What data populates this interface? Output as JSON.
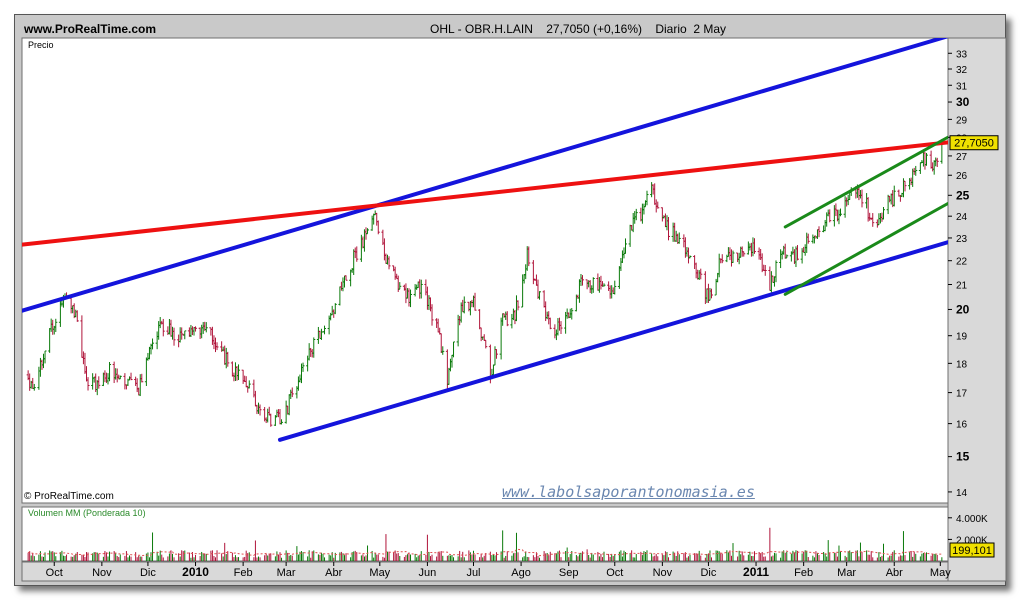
{
  "header": {
    "site": "www.ProRealTime.com",
    "ticker_line": "OHL - OBR.H.LAIN    27,7050 (+0,16%)    Diario  2 May"
  },
  "watermark": "www.labolsaporantonomasia.es",
  "credit": "© ProRealTime.com",
  "price_panel_label": "Precio",
  "volume_panel_label": "Volumen MM (Ponderada 10)",
  "last_price_label": "27,7050",
  "last_volume_label": "199,101",
  "colors": {
    "up_bar": "#0a7a0a",
    "down_bar": "#b0143a",
    "channel_blue": "#1414dc",
    "resistance_red": "#ee1111",
    "channel_green": "#1a8a1a",
    "volume_ma": "#e05050",
    "price_tag_bg": "#f0e000"
  },
  "chart_data": {
    "type": "line",
    "title": "OHL - OBR.H.LAIN",
    "subtitle": "Diario 2 May",
    "xlabel": "",
    "ylabel": "Precio",
    "y_scale": "log",
    "ylim": [
      13.7,
      34
    ],
    "x_range": [
      "2009-09-10",
      "2011-05-06"
    ],
    "x_ticks": [
      {
        "label": "Oct",
        "date": "2009-10-01"
      },
      {
        "label": "Nov",
        "date": "2009-11-01"
      },
      {
        "label": "Dic",
        "date": "2009-12-01"
      },
      {
        "label": "2010",
        "date": "2010-01-01"
      },
      {
        "label": "Feb",
        "date": "2010-02-01"
      },
      {
        "label": "Mar",
        "date": "2010-03-01"
      },
      {
        "label": "Abr",
        "date": "2010-04-01"
      },
      {
        "label": "May",
        "date": "2010-05-01"
      },
      {
        "label": "Jun",
        "date": "2010-06-01"
      },
      {
        "label": "Jul",
        "date": "2010-07-01"
      },
      {
        "label": "Ago",
        "date": "2010-08-01"
      },
      {
        "label": "Sep",
        "date": "2010-09-01"
      },
      {
        "label": "Oct",
        "date": "2010-10-01"
      },
      {
        "label": "Nov",
        "date": "2010-11-01"
      },
      {
        "label": "Dic",
        "date": "2010-12-01"
      },
      {
        "label": "2011",
        "date": "2011-01-01"
      },
      {
        "label": "Feb",
        "date": "2011-02-01"
      },
      {
        "label": "Mar",
        "date": "2011-03-01"
      },
      {
        "label": "Abr",
        "date": "2011-04-01"
      },
      {
        "label": "May",
        "date": "2011-05-01"
      }
    ],
    "y_ticks": [
      "14",
      "15",
      "16",
      "17",
      "18",
      "19",
      "20",
      "21",
      "22",
      "23",
      "24",
      "25",
      "26",
      "27",
      "28",
      "29",
      "30",
      "31",
      "32",
      "33"
    ],
    "price_path": [
      {
        "date": "2009-09-12",
        "close": 17.6
      },
      {
        "date": "2009-09-18",
        "close": 17.0
      },
      {
        "date": "2009-09-25",
        "close": 18.6
      },
      {
        "date": "2009-10-01",
        "close": 19.6
      },
      {
        "date": "2009-10-08",
        "close": 20.4
      },
      {
        "date": "2009-10-15",
        "close": 19.7
      },
      {
        "date": "2009-10-22",
        "close": 17.4
      },
      {
        "date": "2009-10-30",
        "close": 17.2
      },
      {
        "date": "2009-11-06",
        "close": 17.8
      },
      {
        "date": "2009-11-15",
        "close": 17.5
      },
      {
        "date": "2009-11-25",
        "close": 17.0
      },
      {
        "date": "2009-12-03",
        "close": 18.8
      },
      {
        "date": "2009-12-12",
        "close": 19.4
      },
      {
        "date": "2009-12-22",
        "close": 18.9
      },
      {
        "date": "2010-01-01",
        "close": 19.3
      },
      {
        "date": "2010-01-10",
        "close": 19.1
      },
      {
        "date": "2010-01-20",
        "close": 18.2
      },
      {
        "date": "2010-01-28",
        "close": 17.6
      },
      {
        "date": "2010-02-05",
        "close": 17.1
      },
      {
        "date": "2010-02-12",
        "close": 16.2
      },
      {
        "date": "2010-02-22",
        "close": 16.1
      },
      {
        "date": "2010-03-01",
        "close": 16.4
      },
      {
        "date": "2010-03-08",
        "close": 17.4
      },
      {
        "date": "2010-03-18",
        "close": 18.5
      },
      {
        "date": "2010-03-28",
        "close": 19.5
      },
      {
        "date": "2010-04-08",
        "close": 21.3
      },
      {
        "date": "2010-04-18",
        "close": 22.6
      },
      {
        "date": "2010-04-25",
        "close": 23.5
      },
      {
        "date": "2010-04-28",
        "close": 23.9
      },
      {
        "date": "2010-05-05",
        "close": 22.2
      },
      {
        "date": "2010-05-12",
        "close": 21.0
      },
      {
        "date": "2010-05-20",
        "close": 20.4
      },
      {
        "date": "2010-05-28",
        "close": 21.0
      },
      {
        "date": "2010-06-08",
        "close": 19.2
      },
      {
        "date": "2010-06-14",
        "close": 17.3
      },
      {
        "date": "2010-06-22",
        "close": 19.8
      },
      {
        "date": "2010-06-30",
        "close": 20.4
      },
      {
        "date": "2010-07-06",
        "close": 19.2
      },
      {
        "date": "2010-07-12",
        "close": 17.6
      },
      {
        "date": "2010-07-20",
        "close": 19.6
      },
      {
        "date": "2010-07-28",
        "close": 19.8
      },
      {
        "date": "2010-08-05",
        "close": 22.2
      },
      {
        "date": "2010-08-14",
        "close": 20.2
      },
      {
        "date": "2010-08-22",
        "close": 19.2
      },
      {
        "date": "2010-09-01",
        "close": 19.8
      },
      {
        "date": "2010-09-10",
        "close": 21.2
      },
      {
        "date": "2010-09-20",
        "close": 21.0
      },
      {
        "date": "2010-09-28",
        "close": 20.6
      },
      {
        "date": "2010-10-04",
        "close": 21.5
      },
      {
        "date": "2010-10-10",
        "close": 23.5
      },
      {
        "date": "2010-10-18",
        "close": 24.0
      },
      {
        "date": "2010-10-24",
        "close": 25.7
      },
      {
        "date": "2010-10-28",
        "close": 24.2
      },
      {
        "date": "2010-11-05",
        "close": 23.4
      },
      {
        "date": "2010-11-14",
        "close": 22.9
      },
      {
        "date": "2010-11-22",
        "close": 21.8
      },
      {
        "date": "2010-12-01",
        "close": 20.4
      },
      {
        "date": "2010-12-08",
        "close": 21.8
      },
      {
        "date": "2010-12-18",
        "close": 22.3
      },
      {
        "date": "2010-12-28",
        "close": 22.6
      },
      {
        "date": "2011-01-04",
        "close": 22.1
      },
      {
        "date": "2011-01-10",
        "close": 20.9
      },
      {
        "date": "2011-01-18",
        "close": 22.4
      },
      {
        "date": "2011-01-28",
        "close": 22.2
      },
      {
        "date": "2011-02-06",
        "close": 23.0
      },
      {
        "date": "2011-02-16",
        "close": 23.8
      },
      {
        "date": "2011-02-26",
        "close": 24.4
      },
      {
        "date": "2011-03-06",
        "close": 25.3
      },
      {
        "date": "2011-03-14",
        "close": 24.5
      },
      {
        "date": "2011-03-20",
        "close": 23.2
      },
      {
        "date": "2011-03-28",
        "close": 24.6
      },
      {
        "date": "2011-04-06",
        "close": 25.4
      },
      {
        "date": "2011-04-14",
        "close": 26.2
      },
      {
        "date": "2011-04-22",
        "close": 27.0
      },
      {
        "date": "2011-04-26",
        "close": 26.3
      },
      {
        "date": "2011-05-02",
        "close": 27.705
      }
    ],
    "trend_lines": [
      {
        "color": "blue",
        "from": {
          "date": "2009-09-10",
          "price": 19.95
        },
        "to": {
          "date": "2011-05-25",
          "price": 34.7
        }
      },
      {
        "color": "blue",
        "from": {
          "date": "2010-02-25",
          "price": 15.5
        },
        "to": {
          "date": "2011-05-25",
          "price": 23.2
        }
      },
      {
        "color": "red",
        "from": {
          "date": "2009-09-10",
          "price": 22.7
        },
        "to": {
          "date": "2011-05-25",
          "price": 27.9
        }
      },
      {
        "color": "green",
        "from": {
          "date": "2011-01-20",
          "price": 23.5
        },
        "to": {
          "date": "2011-05-25",
          "price": 28.9
        }
      },
      {
        "color": "green",
        "from": {
          "date": "2011-01-20",
          "price": 20.6
        },
        "to": {
          "date": "2011-05-25",
          "price": 25.4
        }
      }
    ],
    "last_price": 27.705,
    "change_pct": 0.16,
    "volume": {
      "label": "Volumen MM (Ponderada 10)",
      "y_ticks": [
        "4.000K",
        "2.000K"
      ],
      "ylim": [
        0,
        5000
      ],
      "last_ma": 199.101
    }
  }
}
